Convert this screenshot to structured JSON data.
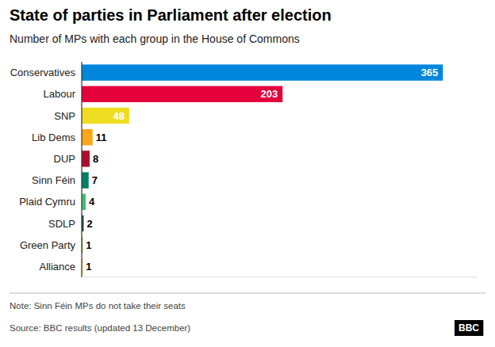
{
  "chart_data": {
    "type": "bar",
    "orientation": "horizontal",
    "title": "State of parties in Parliament after election",
    "subtitle": "Number of MPs with each group in the House of Commons",
    "annotations": [
      "Note: Sinn Féin MPs do not take their seats",
      "Source: BBC results (updated 13 December)",
      "BBC"
    ],
    "categories": [
      "Conservatives",
      "Labour",
      "SNP",
      "Lib Dems",
      "DUP",
      "Sinn Féin",
      "Plaid Cymru",
      "SDLP",
      "Green Party",
      "Alliance"
    ],
    "values": [
      365,
      203,
      48,
      11,
      8,
      7,
      4,
      2,
      1,
      1
    ],
    "colors": [
      "#0087DC",
      "#E4003B",
      "#EDDC1F",
      "#FAA61A",
      "#AE0C2B",
      "#008066",
      "#3FBF6F",
      "#2A4B3A",
      "#6AB023",
      "#F6CB2F"
    ],
    "xlim": [
      0,
      400
    ],
    "data_labels": true,
    "tick_labels": "y",
    "grid": false
  }
}
